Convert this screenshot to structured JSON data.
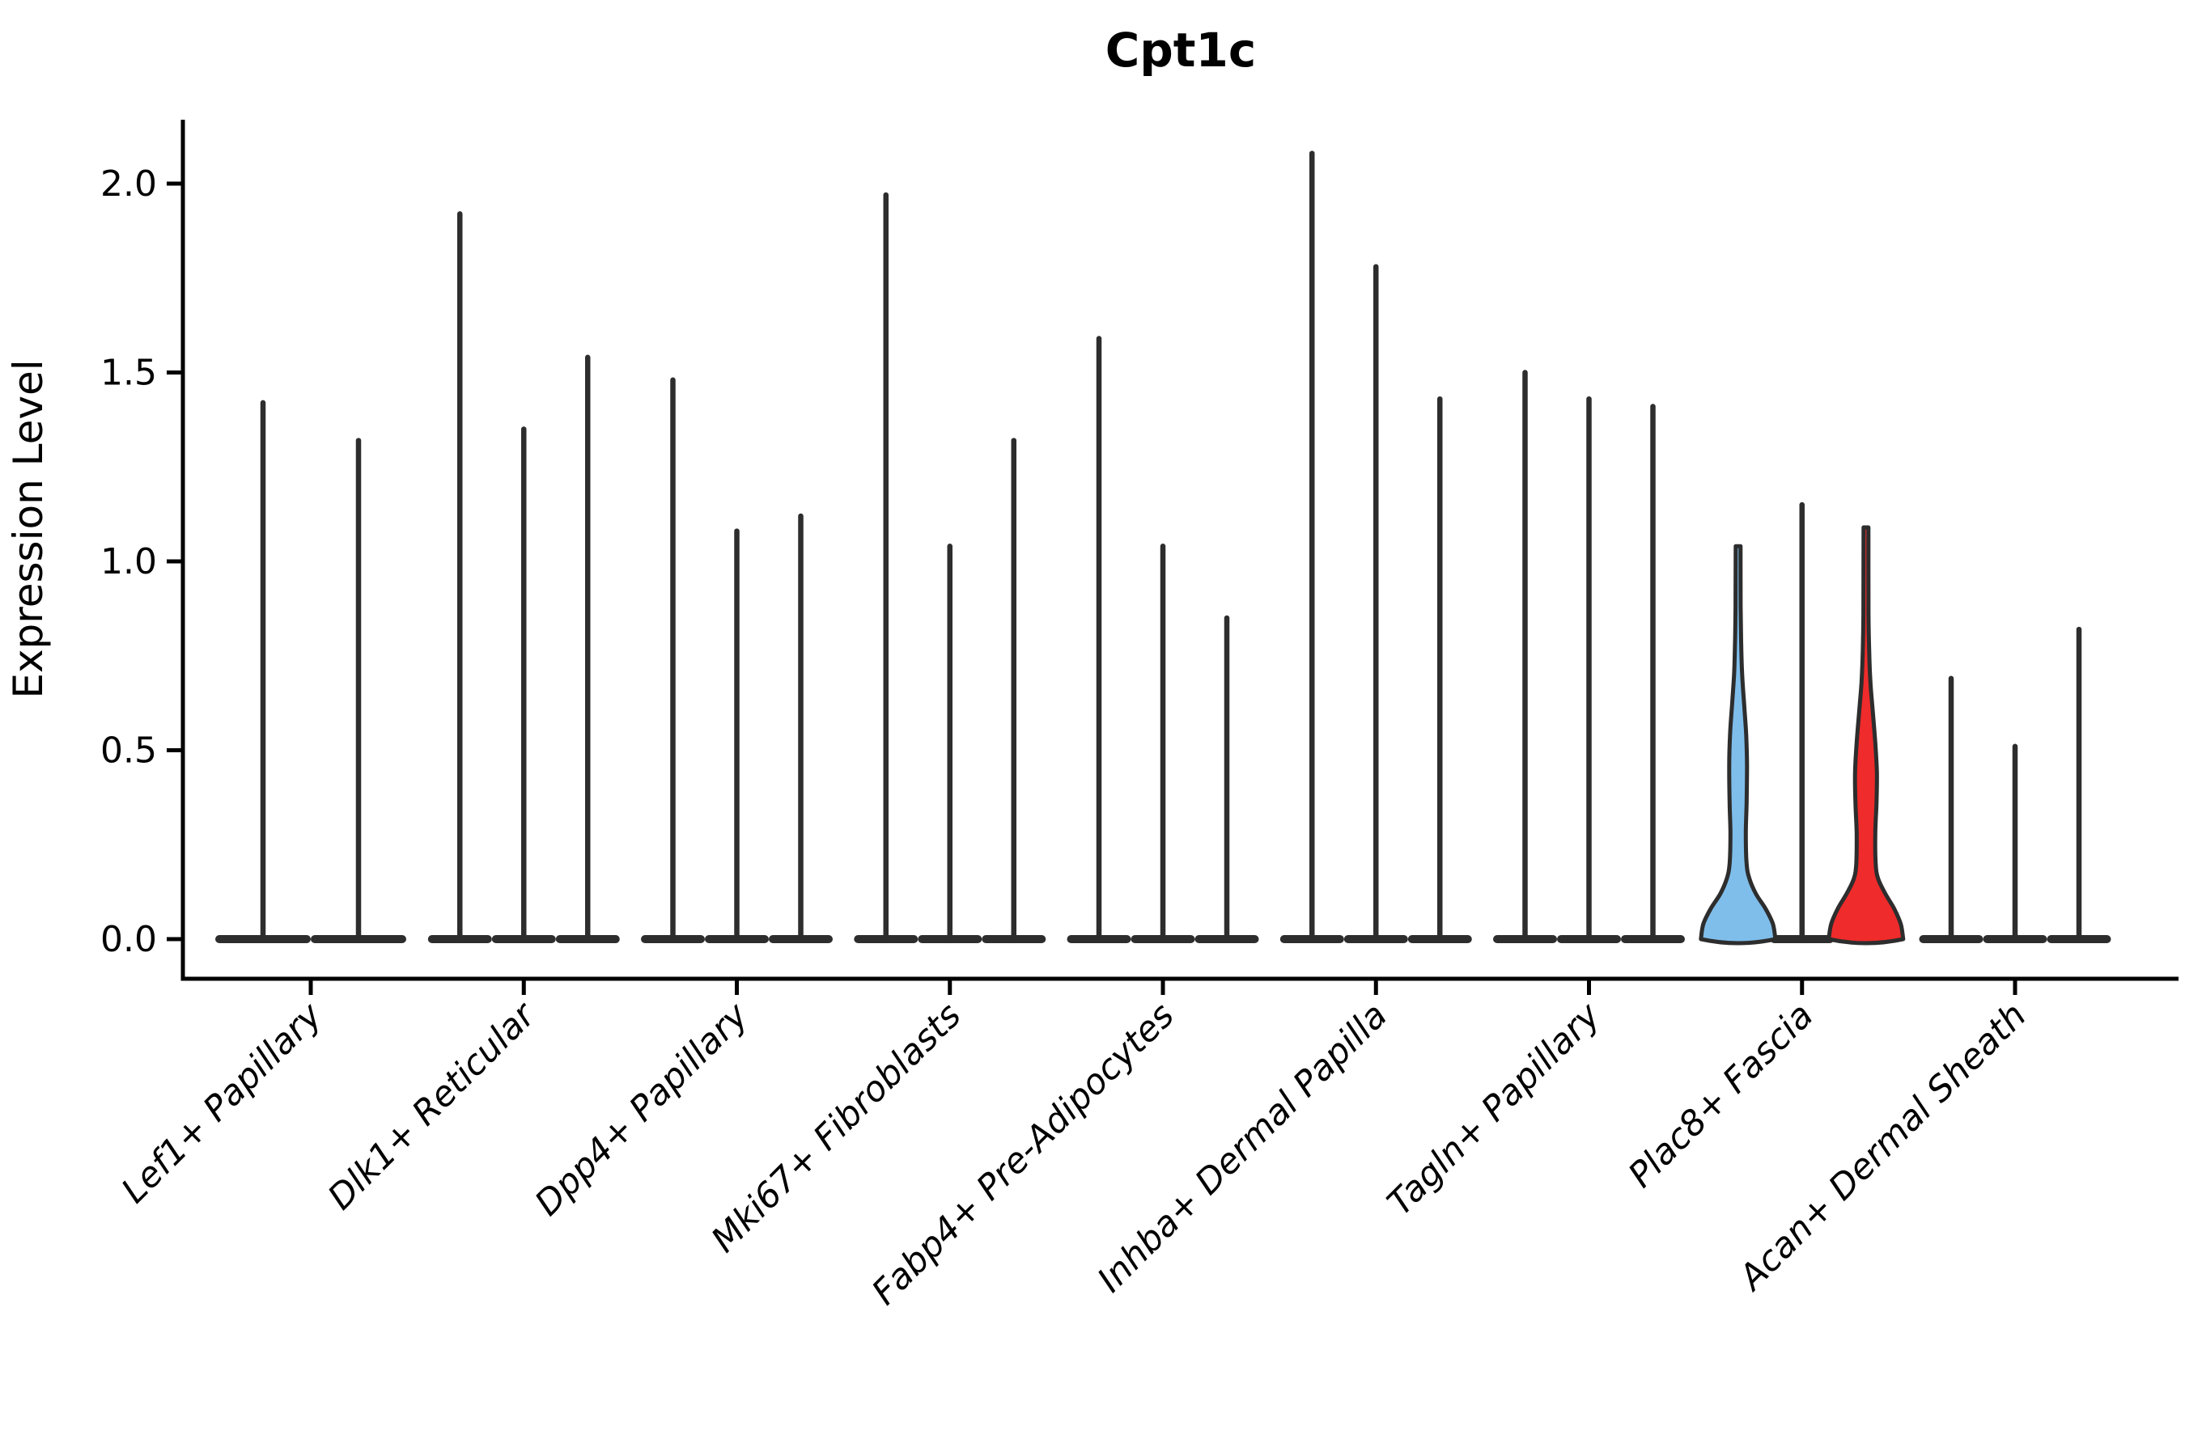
{
  "title": "Cpt1c",
  "axes": {
    "ylabel": "Expression Level",
    "ytick_labels": [
      "0.0",
      "0.5",
      "1.0",
      "1.5",
      "2.0"
    ]
  },
  "colors": {
    "outline": "#2d2d2d",
    "axis": "#000000",
    "blue_fill": "#7FBEEB",
    "red_fill": "#EF2B2B"
  },
  "chart_data": {
    "type": "violin",
    "title": "Cpt1c",
    "xlabel": "",
    "ylabel": "Expression Level",
    "yticks": [
      0.0,
      0.5,
      1.0,
      1.5,
      2.0
    ],
    "ylim": [
      -0.06,
      2.2
    ],
    "grid": false,
    "legend_position": "none",
    "categories": [
      "Lef1+ Papillary",
      "Dlk1+ Reticular",
      "Dpp4+ Papillary",
      "Mki67+ Fibroblasts",
      "Fabp4+ Pre-Adipocytes",
      "Inhba+ Dermal Papilla",
      "Tagln+ Papillary",
      "Plac8+ Fascia",
      "Acan+ Dermal Sheath"
    ],
    "description": "Violin plot of Cpt1c expression; most violins are near-zero flat bases with a thin line to the max expression value; Plac8+ Fascia has one blue and one red filled violin with visible density.",
    "groups": [
      {
        "category": "Lef1+ Papillary",
        "violins": [
          {
            "offset": -59,
            "width": 118,
            "max": 1.42,
            "kind": "spike"
          },
          {
            "offset": 59,
            "width": 118,
            "max": 1.32,
            "kind": "spike"
          }
        ]
      },
      {
        "category": "Dlk1+ Reticular",
        "violins": [
          {
            "offset": -79,
            "width": 79,
            "max": 1.92,
            "kind": "spike"
          },
          {
            "offset": 0,
            "width": 79,
            "max": 1.35,
            "kind": "spike"
          },
          {
            "offset": 79,
            "width": 79,
            "max": 1.54,
            "kind": "spike"
          }
        ]
      },
      {
        "category": "Dpp4+ Papillary",
        "violins": [
          {
            "offset": -79,
            "width": 79,
            "max": 1.48,
            "kind": "spike"
          },
          {
            "offset": 0,
            "width": 79,
            "max": 1.08,
            "kind": "spike"
          },
          {
            "offset": 79,
            "width": 79,
            "max": 1.12,
            "kind": "spike"
          }
        ]
      },
      {
        "category": "Mki67+ Fibroblasts",
        "violins": [
          {
            "offset": -79,
            "width": 79,
            "max": 1.97,
            "kind": "spike"
          },
          {
            "offset": 0,
            "width": 79,
            "max": 1.04,
            "kind": "spike"
          },
          {
            "offset": 79,
            "width": 79,
            "max": 1.32,
            "kind": "spike"
          }
        ]
      },
      {
        "category": "Fabp4+ Pre-Adipocytes",
        "violins": [
          {
            "offset": -79,
            "width": 79,
            "max": 1.59,
            "kind": "spike"
          },
          {
            "offset": 0,
            "width": 79,
            "max": 1.04,
            "kind": "spike"
          },
          {
            "offset": 79,
            "width": 79,
            "max": 0.85,
            "kind": "spike"
          }
        ]
      },
      {
        "category": "Inhba+ Dermal Papilla",
        "violins": [
          {
            "offset": -79,
            "width": 79,
            "max": 2.08,
            "kind": "spike"
          },
          {
            "offset": 0,
            "width": 79,
            "max": 1.78,
            "kind": "spike"
          },
          {
            "offset": 79,
            "width": 79,
            "max": 1.43,
            "kind": "spike"
          }
        ]
      },
      {
        "category": "Tagln+ Papillary",
        "violins": [
          {
            "offset": -79,
            "width": 79,
            "max": 1.5,
            "kind": "spike"
          },
          {
            "offset": 0,
            "width": 79,
            "max": 1.43,
            "kind": "spike"
          },
          {
            "offset": 79,
            "width": 79,
            "max": 1.41,
            "kind": "spike"
          }
        ]
      },
      {
        "category": "Plac8+ Fascia",
        "violins": [
          {
            "offset": -79,
            "width": 96,
            "max": 1.04,
            "kind": "violin",
            "fill": "blue_fill",
            "profile": [
              [
                0,
                46
              ],
              [
                0.04,
                43
              ],
              [
                0.08,
                34
              ],
              [
                0.12,
                22
              ],
              [
                0.16,
                14
              ],
              [
                0.2,
                10.5
              ],
              [
                0.28,
                9.5
              ],
              [
                0.36,
                10.5
              ],
              [
                0.46,
                11
              ],
              [
                0.54,
                10
              ],
              [
                0.62,
                7.5
              ],
              [
                0.7,
                5
              ],
              [
                0.78,
                3.8
              ],
              [
                0.88,
                3.2
              ],
              [
                1.04,
                3
              ]
            ]
          },
          {
            "offset": 0,
            "width": 79,
            "max": 1.15,
            "kind": "spike"
          },
          {
            "offset": 79,
            "width": 96,
            "max": 1.09,
            "kind": "violin",
            "fill": "red_fill",
            "profile": [
              [
                0,
                46
              ],
              [
                0.04,
                43
              ],
              [
                0.08,
                35
              ],
              [
                0.12,
                24
              ],
              [
                0.16,
                15
              ],
              [
                0.2,
                12
              ],
              [
                0.28,
                11.5
              ],
              [
                0.36,
                13
              ],
              [
                0.44,
                13.5
              ],
              [
                0.52,
                11.5
              ],
              [
                0.6,
                8.5
              ],
              [
                0.68,
                5.5
              ],
              [
                0.76,
                4
              ],
              [
                0.86,
                3.2
              ],
              [
                1.09,
                3
              ]
            ]
          }
        ]
      },
      {
        "category": "Acan+ Dermal Sheath",
        "violins": [
          {
            "offset": -79,
            "width": 79,
            "max": 0.69,
            "kind": "spike"
          },
          {
            "offset": 0,
            "width": 79,
            "max": 0.51,
            "kind": "spike"
          },
          {
            "offset": 79,
            "width": 79,
            "max": 0.82,
            "kind": "spike"
          }
        ]
      }
    ]
  }
}
